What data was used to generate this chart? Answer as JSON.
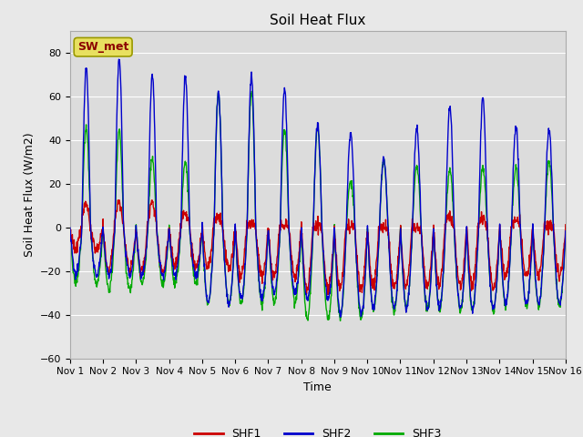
{
  "title": "Soil Heat Flux",
  "xlabel": "Time",
  "ylabel": "Soil Heat Flux (W/m2)",
  "ylim": [
    -60,
    90
  ],
  "yticks": [
    -60,
    -40,
    -20,
    0,
    20,
    40,
    60,
    80
  ],
  "fig_bg_color": "#e8e8e8",
  "plot_bg_color": "#dcdcdc",
  "grid_color": "#ffffff",
  "colors": {
    "SHF1": "#cc0000",
    "SHF2": "#0000cc",
    "SHF3": "#00aa00"
  },
  "annotation_text": "SW_met",
  "annotation_color": "#8b0000",
  "annotation_bg": "#e8e060",
  "x_tick_labels": [
    "Nov 1",
    "Nov 2",
    "Nov 3",
    "Nov 4",
    "Nov 5",
    "Nov 6",
    "Nov 7",
    "Nov 8",
    "Nov 9",
    "Nov 10",
    "Nov 11",
    "Nov 12",
    "Nov 13",
    "Nov 14",
    "Nov 15",
    "Nov 16"
  ],
  "n_days": 15,
  "pts_per_day": 96,
  "shf2_peaks": [
    73,
    77,
    70,
    69,
    62,
    69,
    63,
    47,
    43,
    31,
    45,
    55,
    59,
    45,
    45
  ],
  "shf2_nights": [
    -22,
    -22,
    -22,
    -22,
    -35,
    -33,
    -30,
    -33,
    -40,
    -37,
    -37,
    -37,
    -37,
    -35,
    -35
  ],
  "shf3_peaks": [
    46,
    44,
    31,
    30,
    61,
    62,
    45,
    46,
    21,
    31,
    28,
    26,
    27,
    27,
    30
  ],
  "shf3_nights": [
    -26,
    -29,
    -26,
    -26,
    -35,
    -35,
    -34,
    -42,
    -42,
    -38,
    -37,
    -38,
    -38,
    -36,
    -36
  ],
  "shf1_peaks": [
    11,
    11,
    11,
    6,
    5,
    2,
    1,
    0,
    0,
    0,
    0,
    5,
    4,
    3,
    2
  ],
  "shf1_nights": [
    -10,
    -20,
    -20,
    -18,
    -18,
    -22,
    -22,
    -28,
    -28,
    -27,
    -27,
    -27,
    -27,
    -22,
    -22
  ]
}
